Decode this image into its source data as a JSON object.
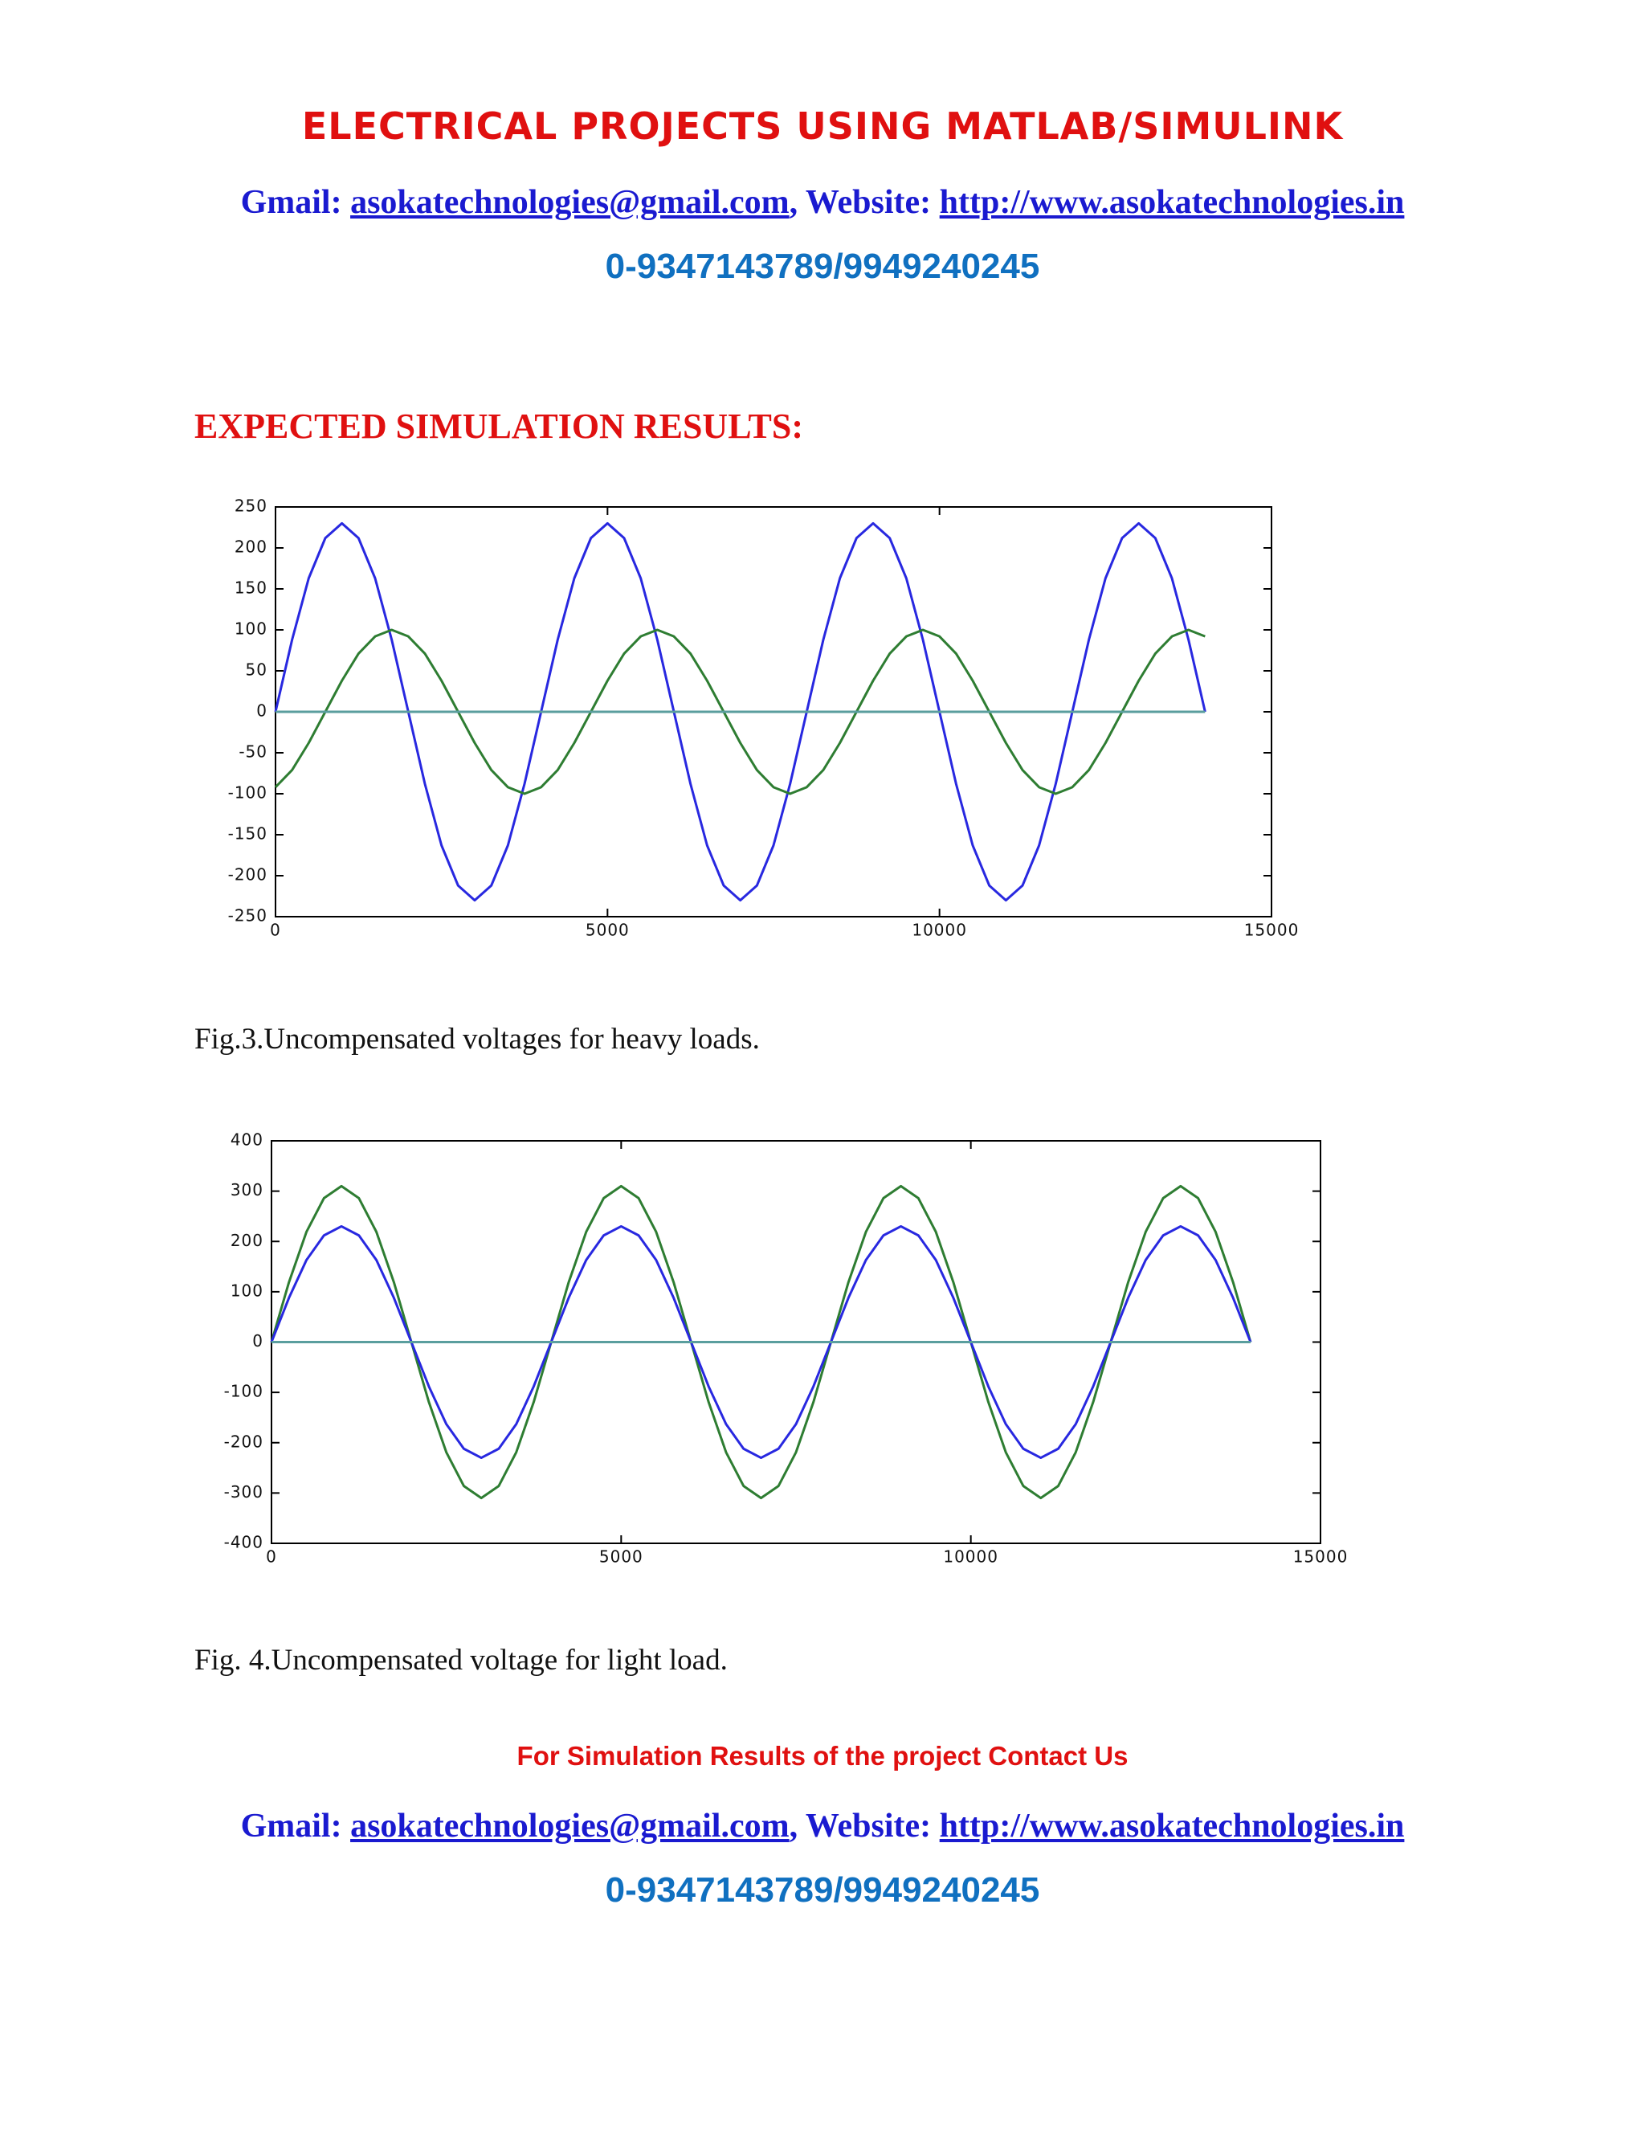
{
  "header": {
    "title": "ELECTRICAL PROJECTS USING MATLAB/SIMULINK",
    "gmail_label": "Gmail:",
    "email": "asokatechnologies@gmail.com",
    "website_label": ", Website:",
    "website": "http://www.asokatechnologies.in",
    "phone": "0-9347143789/9949240245"
  },
  "section_title": "EXPECTED SIMULATION RESULTS:",
  "chart_data": [
    {
      "type": "line",
      "caption": "Fig.3.Uncompensated voltages for heavy loads.",
      "x": [
        0,
        250,
        500,
        750,
        1000,
        1250,
        1500,
        1750,
        2000,
        2250,
        2500,
        2750,
        3000,
        3250,
        3500,
        3750,
        4000,
        4250,
        4500,
        4750,
        5000,
        5250,
        5500,
        5750,
        6000,
        6250,
        6500,
        6750,
        7000,
        7250,
        7500,
        7750,
        8000,
        8250,
        8500,
        8750,
        9000,
        9250,
        9500,
        9750,
        10000,
        10250,
        10500,
        10750,
        11000,
        11250,
        11500,
        11750,
        12000,
        12250,
        12500,
        12750,
        13000,
        13250,
        13500,
        13750,
        14000
      ],
      "series": [
        {
          "color": "#2828e0",
          "values": [
            0,
            88,
            163,
            212,
            230,
            212,
            163,
            88,
            0,
            -88,
            -163,
            -212,
            -230,
            -212,
            -163,
            -88,
            0,
            88,
            163,
            212,
            230,
            212,
            163,
            88,
            0,
            -88,
            -163,
            -212,
            -230,
            -212,
            -163,
            -88,
            0,
            88,
            163,
            212,
            230,
            212,
            163,
            88,
            0,
            -88,
            -163,
            -212,
            -230,
            -212,
            -163,
            -88,
            0,
            88,
            163,
            212,
            230,
            212,
            163,
            88,
            0
          ]
        },
        {
          "color": "#2e7d32",
          "values": [
            -92,
            -71,
            -38,
            0,
            38,
            71,
            92,
            100,
            92,
            71,
            38,
            0,
            -38,
            -71,
            -92,
            -100,
            -92,
            -71,
            -38,
            0,
            38,
            71,
            92,
            100,
            92,
            71,
            38,
            0,
            -38,
            -71,
            -92,
            -100,
            -92,
            -71,
            -38,
            0,
            38,
            71,
            92,
            100,
            92,
            71,
            38,
            0,
            -38,
            -71,
            -92,
            -100,
            -92,
            -71,
            -38,
            0,
            38,
            71,
            92,
            100,
            92
          ]
        },
        {
          "color": "#5a9e9e",
          "values": [
            0,
            0,
            0,
            0,
            0,
            0,
            0,
            0,
            0,
            0,
            0,
            0,
            0,
            0,
            0,
            0,
            0,
            0,
            0,
            0,
            0,
            0,
            0,
            0,
            0,
            0,
            0,
            0,
            0,
            0,
            0,
            0,
            0,
            0,
            0,
            0,
            0,
            0,
            0,
            0,
            0,
            0,
            0,
            0,
            0,
            0,
            0,
            0,
            0,
            0,
            0,
            0,
            0,
            0,
            0,
            0,
            0
          ]
        }
      ],
      "xlim": [
        0,
        15000
      ],
      "ylim": [
        -250,
        250
      ],
      "xticks": [
        0,
        5000,
        10000,
        15000
      ],
      "yticks": [
        -250,
        -200,
        -150,
        -100,
        -50,
        0,
        50,
        100,
        150,
        200,
        250
      ]
    },
    {
      "type": "line",
      "caption": "Fig. 4.Uncompensated voltage for light load.",
      "x": [
        0,
        250,
        500,
        750,
        1000,
        1250,
        1500,
        1750,
        2000,
        2250,
        2500,
        2750,
        3000,
        3250,
        3500,
        3750,
        4000,
        4250,
        4500,
        4750,
        5000,
        5250,
        5500,
        5750,
        6000,
        6250,
        6500,
        6750,
        7000,
        7250,
        7500,
        7750,
        8000,
        8250,
        8500,
        8750,
        9000,
        9250,
        9500,
        9750,
        10000,
        10250,
        10500,
        10750,
        11000,
        11250,
        11500,
        11750,
        12000,
        12250,
        12500,
        12750,
        13000,
        13250,
        13500,
        13750,
        14000
      ],
      "series": [
        {
          "color": "#2e7d32",
          "values": [
            0,
            119,
            219,
            286,
            310,
            286,
            219,
            119,
            0,
            -119,
            -219,
            -286,
            -310,
            -286,
            -219,
            -119,
            0,
            119,
            219,
            286,
            310,
            286,
            219,
            119,
            0,
            -119,
            -219,
            -286,
            -310,
            -286,
            -219,
            -119,
            0,
            119,
            219,
            286,
            310,
            286,
            219,
            119,
            0,
            -119,
            -219,
            -286,
            -310,
            -286,
            -219,
            -119,
            0,
            119,
            219,
            286,
            310,
            286,
            219,
            119,
            0
          ]
        },
        {
          "color": "#2828e0",
          "values": [
            0,
            88,
            163,
            212,
            230,
            212,
            163,
            88,
            0,
            -88,
            -163,
            -212,
            -230,
            -212,
            -163,
            -88,
            0,
            88,
            163,
            212,
            230,
            212,
            163,
            88,
            0,
            -88,
            -163,
            -212,
            -230,
            -212,
            -163,
            -88,
            0,
            88,
            163,
            212,
            230,
            212,
            163,
            88,
            0,
            -88,
            -163,
            -212,
            -230,
            -212,
            -163,
            -88,
            0,
            88,
            163,
            212,
            230,
            212,
            163,
            88,
            0
          ]
        },
        {
          "color": "#5a9e9e",
          "values": [
            0,
            0,
            0,
            0,
            0,
            0,
            0,
            0,
            0,
            0,
            0,
            0,
            0,
            0,
            0,
            0,
            0,
            0,
            0,
            0,
            0,
            0,
            0,
            0,
            0,
            0,
            0,
            0,
            0,
            0,
            0,
            0,
            0,
            0,
            0,
            0,
            0,
            0,
            0,
            0,
            0,
            0,
            0,
            0,
            0,
            0,
            0,
            0,
            0,
            0,
            0,
            0,
            0,
            0,
            0,
            0,
            0
          ]
        }
      ],
      "xlim": [
        0,
        15000
      ],
      "ylim": [
        -400,
        400
      ],
      "xticks": [
        0,
        5000,
        10000,
        15000
      ],
      "yticks": [
        -400,
        -300,
        -200,
        -100,
        0,
        100,
        200,
        300,
        400
      ]
    }
  ],
  "footer": {
    "note": "For Simulation Results of the project Contact Us",
    "gmail_label": "Gmail:",
    "email": "asokatechnologies@gmail.com",
    "website_label": ", Website:",
    "website": "http://www.asokatechnologies.in",
    "phone": "0-9347143789/9949240245"
  }
}
